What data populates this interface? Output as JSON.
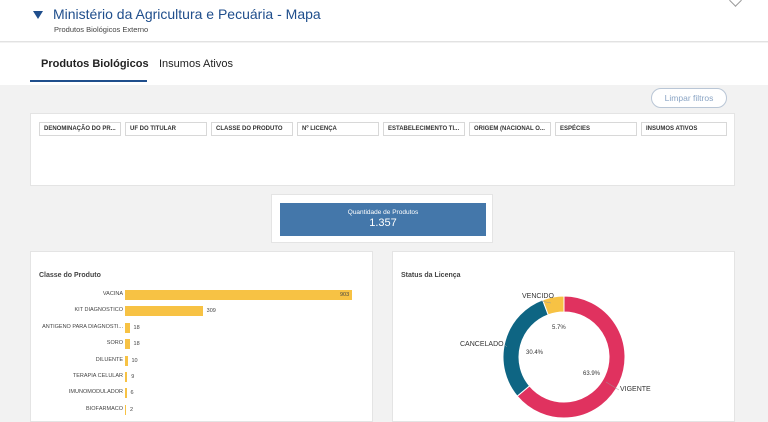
{
  "header": {
    "title": "Ministério da Agricultura e Pecuária - Mapa",
    "subtitle": "Produtos Biológicos Externo"
  },
  "tabs": [
    {
      "label": "Produtos Biológicos",
      "active": true
    },
    {
      "label": "Insumos Ativos",
      "active": false
    }
  ],
  "clear_filters_label": "Limpar filtros",
  "filters": [
    "DENOMINAÇÃO DO PR...",
    "UF DO TITULAR",
    "CLASSE DO PRODUTO",
    "Nº LICENÇA",
    "ESTABELECIMENTO TI...",
    "ORIGEM (NACIONAL O...",
    "ESPÉCIES",
    "INSUMOS ATIVOS"
  ],
  "kpi": {
    "label": "Quantidade de Produtos",
    "value": "1.357"
  },
  "colors": {
    "brand": "#1f4e8c",
    "kpi": "#4477aa",
    "bar": "#f7c244",
    "vigente": "#e0325f",
    "cancelado": "#0e6583",
    "vencido": "#f7c244"
  },
  "chart_data": [
    {
      "type": "bar",
      "orientation": "horizontal",
      "title": "Classe do Produto",
      "categories": [
        "VACINA",
        "KIT DIAGNÓSTICO",
        "ANTÍGENO PARA DIAGNÓSTI...",
        "SORO",
        "DILUENTE",
        "TERAPIA CELULAR",
        "IMUNOMODULADOR",
        "BIOFÁRMACO"
      ],
      "values": [
        903,
        309,
        18,
        18,
        10,
        9,
        6,
        2
      ],
      "xlim": [
        0,
        930
      ],
      "grid": true
    },
    {
      "type": "pie",
      "title": "Status da Licença",
      "donut": true,
      "labels": [
        "VIGENTE",
        "CANCELADO",
        "VENCIDO"
      ],
      "values": [
        63.9,
        30.4,
        5.7
      ],
      "value_labels": [
        "63.9%",
        "30.4%",
        "5.7%"
      ]
    }
  ]
}
